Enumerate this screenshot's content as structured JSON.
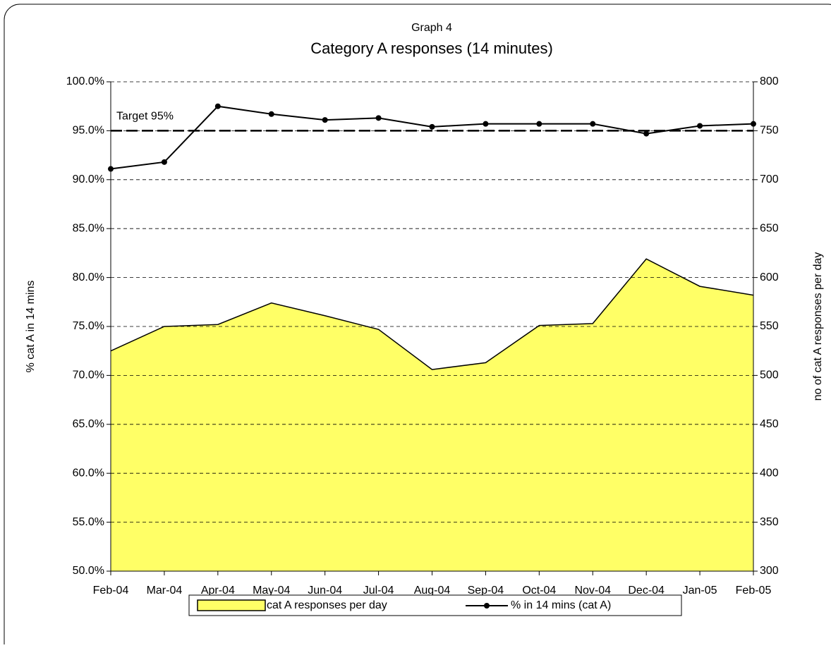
{
  "chart_data": {
    "type": "area-line",
    "supertitle": "Graph 4",
    "title": "Category A responses (14 minutes)",
    "ylabel": "% cat A in 14 mins",
    "y2label": "no of cat A responses per day",
    "categories": [
      "Feb-04",
      "Mar-04",
      "Apr-04",
      "May-04",
      "Jun-04",
      "Jul-04",
      "Aug-04",
      "Sep-04",
      "Oct-04",
      "Nov-04",
      "Dec-04",
      "Jan-05",
      "Feb-05"
    ],
    "series": [
      {
        "name": "cat A responses per day",
        "type": "area",
        "axis": "y2",
        "color": "#ffff66",
        "values": [
          525,
          550,
          552,
          574,
          561,
          547,
          506,
          513,
          551,
          553,
          619,
          591,
          582
        ]
      },
      {
        "name": "% in 14 mins (cat A)",
        "type": "line",
        "axis": "y",
        "color": "#000000",
        "values": [
          91.1,
          91.8,
          97.5,
          96.7,
          96.1,
          96.3,
          95.4,
          95.7,
          95.7,
          95.7,
          94.7,
          95.5,
          95.7
        ]
      }
    ],
    "target": {
      "value": 95,
      "label": "Target 95%"
    },
    "ylim": [
      50,
      100
    ],
    "yticks": [
      {
        "value": 50,
        "label": "50.0%"
      },
      {
        "value": 55,
        "label": "55.0%"
      },
      {
        "value": 60,
        "label": "60.0%"
      },
      {
        "value": 65,
        "label": "65.0%"
      },
      {
        "value": 70,
        "label": "70.0%"
      },
      {
        "value": 75,
        "label": "75.0%"
      },
      {
        "value": 80,
        "label": "80.0%"
      },
      {
        "value": 85,
        "label": "85.0%"
      },
      {
        "value": 90,
        "label": "90.0%"
      },
      {
        "value": 95,
        "label": "95.0%"
      },
      {
        "value": 100,
        "label": "100.0%"
      }
    ],
    "y2lim": [
      300,
      800
    ],
    "y2ticks": [
      300,
      350,
      400,
      450,
      500,
      550,
      600,
      650,
      700,
      750,
      800
    ],
    "grid": true,
    "legend": "bottom"
  }
}
